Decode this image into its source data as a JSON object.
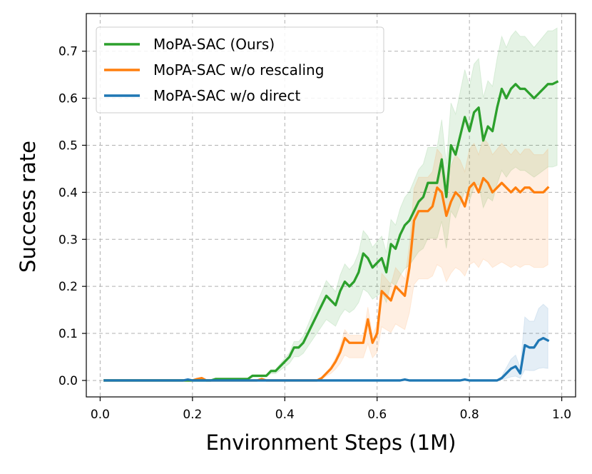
{
  "chart_data": {
    "type": "line",
    "title": "",
    "xlabel": "Environment Steps (1M)",
    "ylabel": "Success rate",
    "xlim": [
      -0.03,
      1.03
    ],
    "ylim": [
      -0.035,
      0.78
    ],
    "xticks": [
      0.0,
      0.2,
      0.4,
      0.6,
      0.8,
      1.0
    ],
    "xtick_labels": [
      "0.0",
      "0.2",
      "0.4",
      "0.6",
      "0.8",
      "1.0"
    ],
    "yticks": [
      0.0,
      0.1,
      0.2,
      0.3,
      0.4,
      0.5,
      0.6,
      0.7
    ],
    "ytick_labels": [
      "0.0",
      "0.1",
      "0.2",
      "0.3",
      "0.4",
      "0.5",
      "0.6",
      "0.7"
    ],
    "grid": true,
    "legend_position": "top-left",
    "series": [
      {
        "name": "MoPA-SAC (Ours)",
        "color": "#2ca02c",
        "x": [
          0.01,
          0.02,
          0.03,
          0.04,
          0.05,
          0.06,
          0.07,
          0.08,
          0.09,
          0.1,
          0.11,
          0.12,
          0.13,
          0.14,
          0.15,
          0.16,
          0.17,
          0.18,
          0.19,
          0.2,
          0.21,
          0.22,
          0.23,
          0.24,
          0.25,
          0.26,
          0.27,
          0.28,
          0.29,
          0.3,
          0.31,
          0.32,
          0.33,
          0.34,
          0.35,
          0.36,
          0.37,
          0.38,
          0.39,
          0.4,
          0.41,
          0.42,
          0.43,
          0.44,
          0.45,
          0.46,
          0.47,
          0.48,
          0.49,
          0.5,
          0.51,
          0.52,
          0.53,
          0.54,
          0.55,
          0.56,
          0.57,
          0.58,
          0.59,
          0.6,
          0.61,
          0.62,
          0.63,
          0.64,
          0.65,
          0.66,
          0.67,
          0.68,
          0.69,
          0.7,
          0.71,
          0.72,
          0.73,
          0.74,
          0.75,
          0.76,
          0.77,
          0.78,
          0.79,
          0.8,
          0.81,
          0.82,
          0.83,
          0.84,
          0.85,
          0.86,
          0.87,
          0.88,
          0.89,
          0.9,
          0.91,
          0.92,
          0.93,
          0.94,
          0.95,
          0.96,
          0.97,
          0.98,
          0.99
        ],
        "values": [
          0,
          0,
          0,
          0,
          0,
          0,
          0,
          0,
          0,
          0,
          0,
          0,
          0,
          0,
          0,
          0,
          0,
          0,
          0,
          0,
          0,
          0,
          0,
          0,
          0.003,
          0.003,
          0.003,
          0.003,
          0.003,
          0.003,
          0.003,
          0.003,
          0.01,
          0.01,
          0.01,
          0.01,
          0.02,
          0.02,
          0.03,
          0.04,
          0.05,
          0.07,
          0.07,
          0.08,
          0.1,
          0.12,
          0.14,
          0.16,
          0.18,
          0.17,
          0.16,
          0.19,
          0.21,
          0.2,
          0.21,
          0.23,
          0.27,
          0.26,
          0.24,
          0.25,
          0.26,
          0.23,
          0.29,
          0.28,
          0.31,
          0.33,
          0.34,
          0.36,
          0.38,
          0.39,
          0.42,
          0.42,
          0.42,
          0.47,
          0.39,
          0.5,
          0.48,
          0.52,
          0.56,
          0.53,
          0.57,
          0.58,
          0.51,
          0.54,
          0.53,
          0.58,
          0.62,
          0.6,
          0.62,
          0.63,
          0.62,
          0.62,
          0.61,
          0.6,
          0.61,
          0.62,
          0.63,
          0.63,
          0.635
        ],
        "band_upper_scale": 1.18,
        "band_lower_scale": 0.72
      },
      {
        "name": "MoPA-SAC w/o rescaling",
        "color": "#ff7f0e",
        "x": [
          0.01,
          0.02,
          0.03,
          0.04,
          0.05,
          0.06,
          0.07,
          0.08,
          0.09,
          0.1,
          0.11,
          0.12,
          0.13,
          0.14,
          0.15,
          0.16,
          0.17,
          0.18,
          0.19,
          0.2,
          0.21,
          0.22,
          0.23,
          0.24,
          0.25,
          0.26,
          0.27,
          0.28,
          0.29,
          0.3,
          0.31,
          0.32,
          0.33,
          0.34,
          0.35,
          0.36,
          0.37,
          0.38,
          0.39,
          0.4,
          0.41,
          0.42,
          0.43,
          0.44,
          0.45,
          0.46,
          0.47,
          0.48,
          0.49,
          0.5,
          0.51,
          0.52,
          0.53,
          0.54,
          0.55,
          0.56,
          0.57,
          0.58,
          0.59,
          0.6,
          0.61,
          0.62,
          0.63,
          0.64,
          0.65,
          0.66,
          0.67,
          0.68,
          0.69,
          0.7,
          0.71,
          0.72,
          0.73,
          0.74,
          0.75,
          0.76,
          0.77,
          0.78,
          0.79,
          0.8,
          0.81,
          0.82,
          0.83,
          0.84,
          0.85,
          0.86,
          0.87,
          0.88,
          0.89,
          0.9,
          0.91,
          0.92,
          0.93,
          0.94,
          0.95,
          0.96,
          0.97
        ],
        "values": [
          0,
          0,
          0,
          0,
          0,
          0,
          0,
          0,
          0,
          0,
          0,
          0,
          0,
          0,
          0,
          0,
          0,
          0,
          0,
          0,
          0.003,
          0.005,
          0,
          0,
          0,
          0,
          0,
          0,
          0,
          0,
          0,
          0,
          0,
          0,
          0.003,
          0,
          0,
          0,
          0,
          0,
          0,
          0,
          0,
          0,
          0,
          0,
          0,
          0.005,
          0.015,
          0.025,
          0.04,
          0.06,
          0.09,
          0.08,
          0.08,
          0.08,
          0.08,
          0.13,
          0.08,
          0.1,
          0.19,
          0.18,
          0.17,
          0.2,
          0.19,
          0.18,
          0.24,
          0.34,
          0.36,
          0.36,
          0.36,
          0.37,
          0.41,
          0.4,
          0.35,
          0.38,
          0.4,
          0.39,
          0.37,
          0.41,
          0.42,
          0.4,
          0.43,
          0.42,
          0.4,
          0.41,
          0.42,
          0.41,
          0.4,
          0.41,
          0.4,
          0.41,
          0.41,
          0.4,
          0.4,
          0.4,
          0.41
        ],
        "band_upper_scale": 1.2,
        "band_lower_scale": 0.6
      },
      {
        "name": "MoPA-SAC w/o direct",
        "color": "#1f77b4",
        "x": [
          0.01,
          0.05,
          0.1,
          0.15,
          0.17,
          0.18,
          0.19,
          0.2,
          0.21,
          0.25,
          0.3,
          0.35,
          0.4,
          0.45,
          0.5,
          0.55,
          0.6,
          0.64,
          0.65,
          0.66,
          0.67,
          0.7,
          0.75,
          0.78,
          0.79,
          0.8,
          0.81,
          0.82,
          0.85,
          0.86,
          0.87,
          0.88,
          0.89,
          0.9,
          0.91,
          0.92,
          0.93,
          0.94,
          0.95,
          0.96,
          0.97
        ],
        "values": [
          0,
          0,
          0,
          0,
          0,
          0,
          0.002,
          0,
          0,
          0,
          0,
          0,
          0,
          0,
          0,
          0,
          0,
          0,
          0,
          0.002,
          0,
          0,
          0,
          0,
          0.002,
          0,
          0,
          0,
          0,
          0,
          0.005,
          0.015,
          0.025,
          0.03,
          0.015,
          0.075,
          0.07,
          0.07,
          0.085,
          0.09,
          0.085
        ],
        "band_upper_scale": 1.8,
        "band_lower_scale": 0.3
      }
    ]
  }
}
